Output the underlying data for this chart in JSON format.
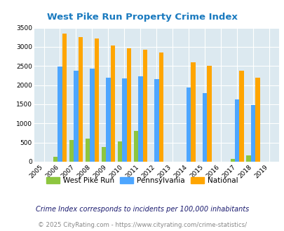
{
  "title": "West Pike Run Property Crime Index",
  "years": [
    2005,
    2006,
    2007,
    2008,
    2009,
    2010,
    2011,
    2012,
    2013,
    2014,
    2015,
    2016,
    2017,
    2018,
    2019
  ],
  "west_pike_run": [
    0,
    130,
    560,
    610,
    390,
    530,
    800,
    0,
    0,
    0,
    0,
    0,
    80,
    160,
    0
  ],
  "pennsylvania": [
    0,
    2480,
    2370,
    2440,
    2200,
    2180,
    2230,
    2150,
    0,
    1940,
    1800,
    0,
    1630,
    1490,
    0
  ],
  "national": [
    0,
    3340,
    3260,
    3220,
    3040,
    2960,
    2920,
    2860,
    0,
    2600,
    2500,
    0,
    2380,
    2200,
    0
  ],
  "ylim": [
    0,
    3500
  ],
  "yticks": [
    0,
    500,
    1000,
    1500,
    2000,
    2500,
    3000,
    3500
  ],
  "color_wpr": "#8dc63f",
  "color_pa": "#4da6ff",
  "color_nat": "#ffa500",
  "bg_color": "#dce9f0",
  "grid_color": "#ffffff",
  "title_color": "#1a7abf",
  "legend_label_wpr": "West Pike Run",
  "legend_label_pa": "Pennsylvania",
  "legend_label_nat": "National",
  "footnote1": "Crime Index corresponds to incidents per 100,000 inhabitants",
  "footnote2": "© 2025 CityRating.com - https://www.cityrating.com/crime-statistics/",
  "bar_width": 0.28
}
